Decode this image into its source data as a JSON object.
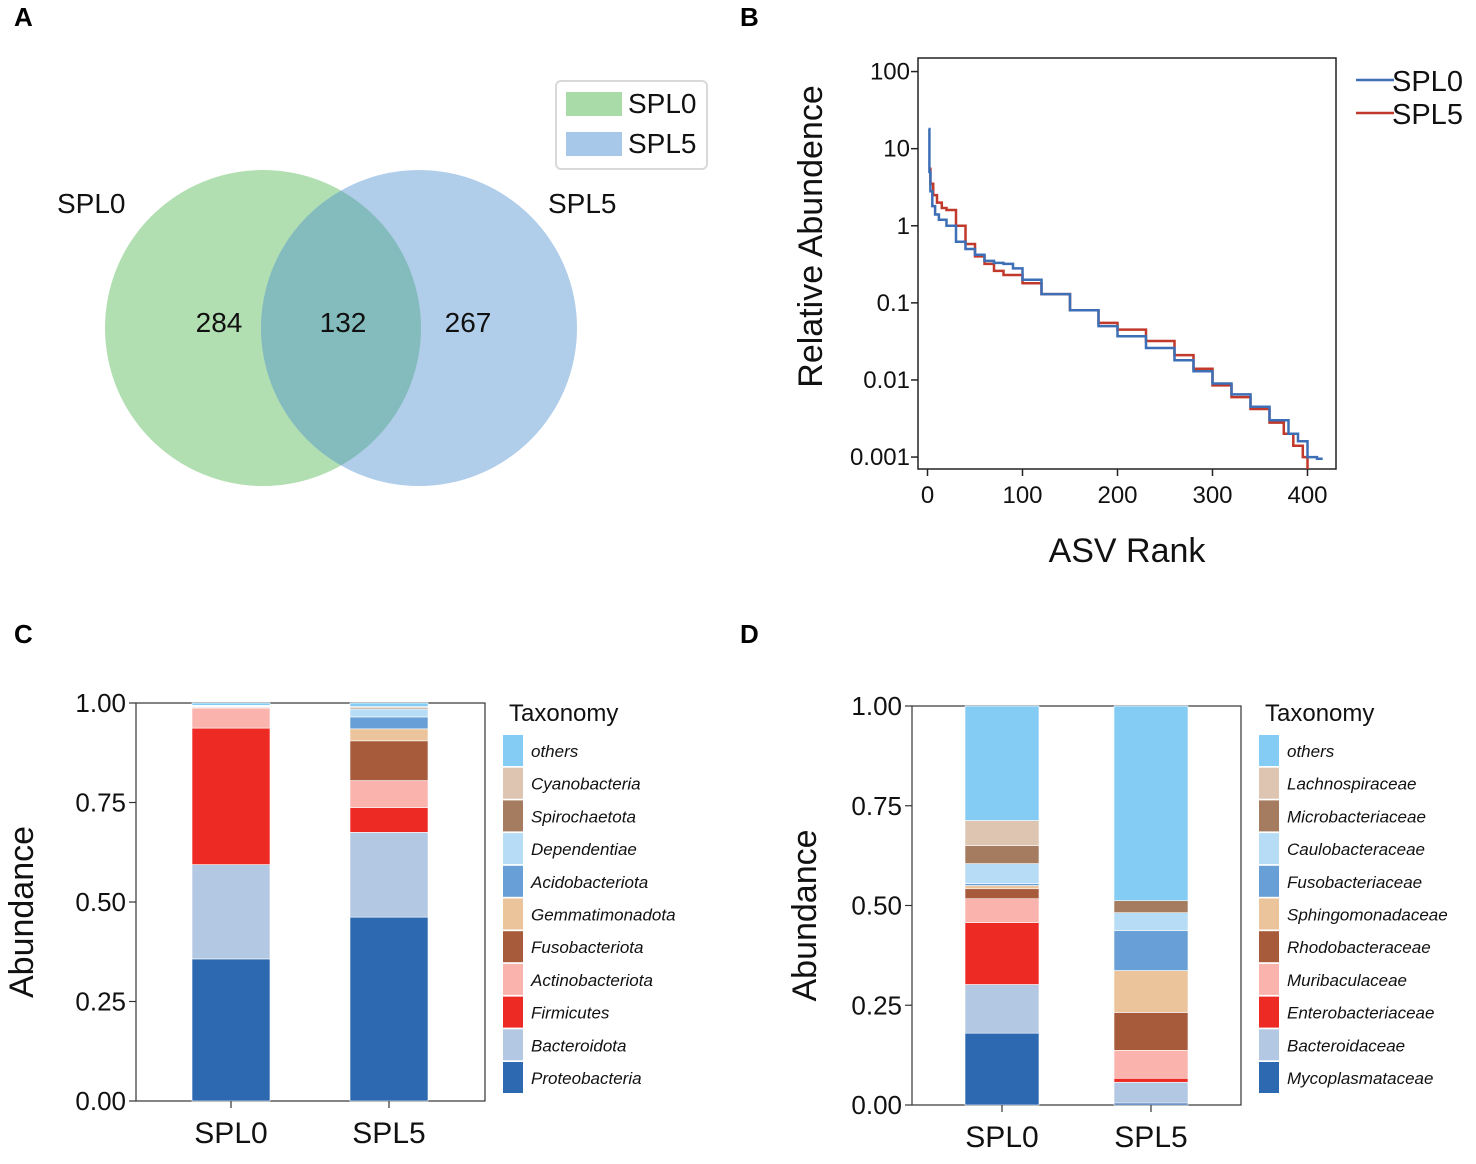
{
  "panels": {
    "A": {
      "label": "A",
      "venn": {
        "sets": [
          {
            "name": "SPL0",
            "only": 284,
            "color": "#a8dba8"
          },
          {
            "name": "SPL5",
            "only": 267,
            "color": "#a7c8e8"
          }
        ],
        "intersection": 132,
        "overlap_color": "#84bcbd",
        "legend": [
          {
            "label": "SPL0",
            "color": "#a8dba8"
          },
          {
            "label": "SPL5",
            "color": "#a7c8e8"
          }
        ]
      }
    },
    "B": {
      "label": "B"
    },
    "C": {
      "label": "C"
    },
    "D": {
      "label": "D"
    }
  },
  "chart_data": [
    {
      "panel": "B",
      "type": "line",
      "xlabel": "ASV Rank",
      "ylabel": "Relative Abundence",
      "yscale": "log",
      "xlim": [
        -10,
        430
      ],
      "ylim": [
        0.0007,
        150
      ],
      "xticks": [
        0,
        100,
        200,
        300,
        400
      ],
      "yticks": [
        100,
        10,
        1,
        0.1,
        0.01,
        0.001
      ],
      "ytick_labels": [
        "100",
        "10",
        "1",
        "0.1",
        "0.01",
        "0.001"
      ],
      "series": [
        {
          "name": "SPL0",
          "color": "#3d6fb6",
          "x": [
            1,
            2,
            3,
            5,
            8,
            12,
            20,
            30,
            40,
            50,
            60,
            70,
            80,
            90,
            100,
            120,
            150,
            180,
            200,
            230,
            260,
            280,
            300,
            320,
            340,
            360,
            380,
            390,
            400,
            410,
            416
          ],
          "y": [
            18,
            5,
            2.8,
            1.8,
            1.4,
            1.2,
            1.0,
            0.62,
            0.5,
            0.42,
            0.35,
            0.33,
            0.32,
            0.28,
            0.2,
            0.13,
            0.08,
            0.05,
            0.037,
            0.026,
            0.018,
            0.013,
            0.009,
            0.0065,
            0.0045,
            0.003,
            0.002,
            0.0016,
            0.001,
            0.00095,
            0.00095
          ]
        },
        {
          "name": "SPL5",
          "color": "#c0392b",
          "x": [
            1,
            3,
            6,
            10,
            15,
            20,
            30,
            40,
            50,
            60,
            70,
            80,
            100,
            120,
            150,
            180,
            200,
            230,
            260,
            280,
            300,
            320,
            340,
            360,
            375,
            385,
            395,
            400
          ],
          "y": [
            5.5,
            3.5,
            2.5,
            2.0,
            1.7,
            1.6,
            1.0,
            0.58,
            0.4,
            0.32,
            0.26,
            0.23,
            0.18,
            0.13,
            0.08,
            0.055,
            0.045,
            0.032,
            0.021,
            0.014,
            0.0085,
            0.006,
            0.0042,
            0.0028,
            0.002,
            0.0014,
            0.001,
            0.0007
          ]
        }
      ],
      "legend": [
        "SPL0",
        "SPL5"
      ]
    },
    {
      "panel": "C",
      "type": "bar",
      "stacked": true,
      "xlabel": "",
      "ylabel": "Abundance",
      "ylim": [
        0,
        1
      ],
      "yticks": [
        0,
        0.25,
        0.5,
        0.75,
        1
      ],
      "ytick_labels": [
        "0.00",
        "0.25",
        "0.50",
        "0.75",
        "1.00"
      ],
      "categories": [
        "SPL0",
        "SPL5"
      ],
      "legend_title": "Taxonomy",
      "series": [
        {
          "name": "Proteobacteria",
          "color": "#2d69b0",
          "values": [
            0.357,
            0.462
          ]
        },
        {
          "name": "Bacteroidota",
          "color": "#b3c8e2",
          "values": [
            0.237,
            0.213
          ]
        },
        {
          "name": "Firmicutes",
          "color": "#ee2a24",
          "values": [
            0.343,
            0.062
          ]
        },
        {
          "name": "Actinobacteriota",
          "color": "#fbb3ae",
          "values": [
            0.05,
            0.068
          ]
        },
        {
          "name": "Fusobacteriota",
          "color": "#a85b3b",
          "values": [
            0.002,
            0.1
          ]
        },
        {
          "name": "Gemmatimonadota",
          "color": "#ebc49c",
          "values": [
            0.001,
            0.03
          ]
        },
        {
          "name": "Acidobacteriota",
          "color": "#679fd6",
          "values": [
            0.001,
            0.03
          ]
        },
        {
          "name": "Dependentiae",
          "color": "#b7dcf6",
          "values": [
            0.001,
            0.02
          ]
        },
        {
          "name": "Spirochaetota",
          "color": "#a57c5f",
          "values": [
            0.001,
            0.003
          ]
        },
        {
          "name": "Cyanobacteria",
          "color": "#ddc5b1",
          "values": [
            0.001,
            0.003
          ]
        },
        {
          "name": "others",
          "color": "#85ccf4",
          "values": [
            0.006,
            0.009
          ]
        }
      ]
    },
    {
      "panel": "D",
      "type": "bar",
      "stacked": true,
      "xlabel": "",
      "ylabel": "Abundance",
      "ylim": [
        0,
        1
      ],
      "yticks": [
        0,
        0.25,
        0.5,
        0.75,
        1
      ],
      "ytick_labels": [
        "0.00",
        "0.25",
        "0.50",
        "0.75",
        "1.00"
      ],
      "categories": [
        "SPL0",
        "SPL5"
      ],
      "legend_title": "Taxonomy",
      "series": [
        {
          "name": "Mycoplasmataceae",
          "color": "#2d69b0",
          "values": [
            0.18,
            0.005
          ]
        },
        {
          "name": "Bacteroidaceae",
          "color": "#b3c8e2",
          "values": [
            0.122,
            0.052
          ]
        },
        {
          "name": "Enterobacteriaceae",
          "color": "#ee2a24",
          "values": [
            0.155,
            0.01
          ]
        },
        {
          "name": "Muribaculaceae",
          "color": "#fbb3ae",
          "values": [
            0.06,
            0.07
          ]
        },
        {
          "name": "Rhodobacteraceae",
          "color": "#a85b3b",
          "values": [
            0.025,
            0.095
          ]
        },
        {
          "name": "Sphingomonadaceae",
          "color": "#ebc49c",
          "values": [
            0.008,
            0.105
          ]
        },
        {
          "name": "Fusobacteriaceae",
          "color": "#679fd6",
          "values": [
            0.005,
            0.1
          ]
        },
        {
          "name": "Caulobacteraceae",
          "color": "#b7dcf6",
          "values": [
            0.05,
            0.045
          ]
        },
        {
          "name": "Microbacteriaceae",
          "color": "#a57c5f",
          "values": [
            0.045,
            0.03
          ]
        },
        {
          "name": "Lachnospiraceae",
          "color": "#ddc5b1",
          "values": [
            0.063,
            0.0
          ]
        },
        {
          "name": "others",
          "color": "#85ccf4",
          "values": [
            0.287,
            0.488
          ]
        }
      ]
    }
  ]
}
